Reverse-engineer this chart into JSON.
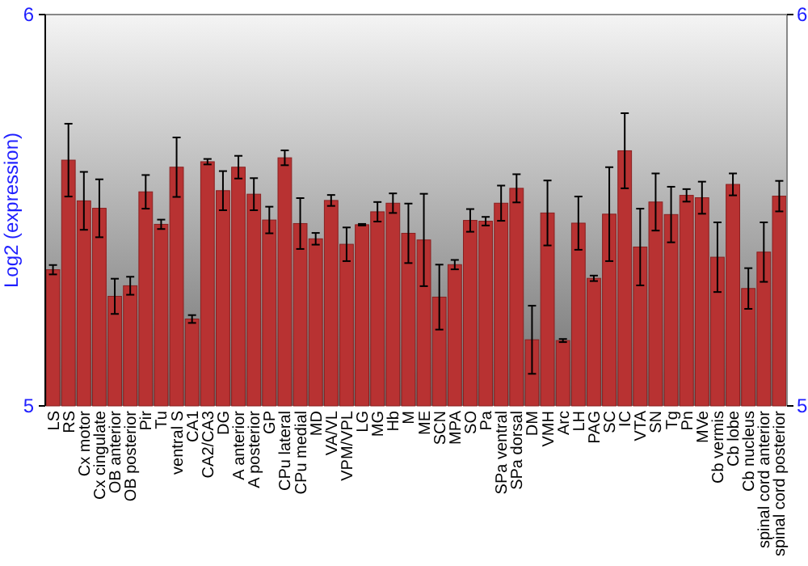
{
  "chart_data": {
    "type": "bar",
    "ylabel": "Log2 (expression)",
    "categories": [
      "LS",
      "RS",
      "Cx motor",
      "Cx cingulate",
      "OB anterior",
      "OB posterior",
      "Pir",
      "Tu",
      "ventral S",
      "CA1",
      "CA2/CA3",
      "DG",
      "A anterior",
      "A posterior",
      "GP",
      "CPu lateral",
      "CPu medial",
      "MD",
      "VA/VL",
      "VPM/VPL",
      "LG",
      "MG",
      "Hb",
      "M",
      "ME",
      "SCN",
      "MPA",
      "SO",
      "Pa",
      "SPa ventral",
      "SPa dorsal",
      "DM",
      "VMH",
      "Arc",
      "LH",
      "PAG",
      "SC",
      "IC",
      "VTA",
      "SN",
      "Tg",
      "Pn",
      "MVe",
      "Cb vermis",
      "Cb lobe",
      "Cb nucleus",
      "spinal cord anterior",
      "spinal cord posterior"
    ],
    "values": [
      5.348,
      5.628,
      5.524,
      5.505,
      5.28,
      5.307,
      5.547,
      5.464,
      5.61,
      5.222,
      5.624,
      5.55,
      5.61,
      5.541,
      5.475,
      5.634,
      5.466,
      5.427,
      5.525,
      5.413,
      5.463,
      5.496,
      5.518,
      5.441,
      5.424,
      5.278,
      5.361,
      5.474,
      5.472,
      5.518,
      5.556,
      5.169,
      5.493,
      5.167,
      5.467,
      5.326,
      5.49,
      5.652,
      5.406,
      5.521,
      5.489,
      5.538,
      5.532,
      5.38,
      5.566,
      5.3,
      5.393,
      5.536
    ],
    "errors": [
      0.012,
      0.093,
      0.074,
      0.074,
      0.045,
      0.023,
      0.043,
      0.012,
      0.076,
      0.01,
      0.007,
      0.05,
      0.029,
      0.041,
      0.034,
      0.019,
      0.065,
      0.015,
      0.014,
      0.043,
      0.002,
      0.025,
      0.025,
      0.076,
      0.118,
      0.083,
      0.012,
      0.029,
      0.011,
      0.045,
      0.036,
      0.087,
      0.083,
      0.004,
      0.068,
      0.007,
      0.12,
      0.096,
      0.098,
      0.073,
      0.071,
      0.016,
      0.041,
      0.089,
      0.028,
      0.052,
      0.076,
      0.039
    ],
    "color": "#b83232",
    "ylim": [
      5,
      6
    ],
    "yticks": [
      5,
      6
    ],
    "y2lim": [
      5,
      6
    ],
    "y2ticks": [
      5,
      6
    ],
    "grid": false
  }
}
